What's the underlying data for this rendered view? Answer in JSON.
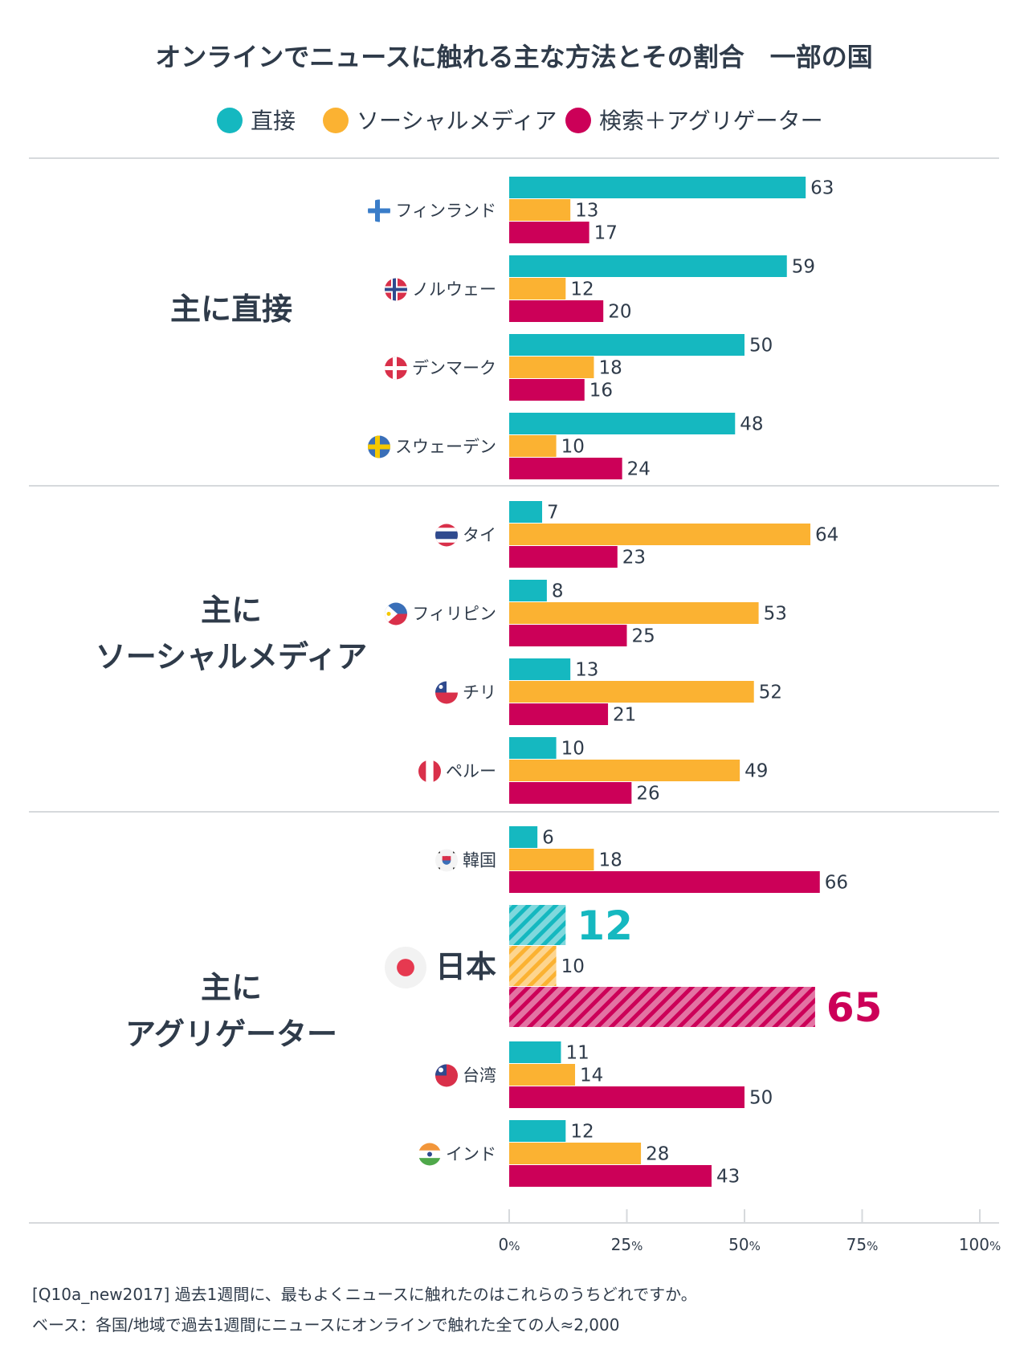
{
  "colors": {
    "direct": "#15b8c0",
    "social": "#fbb232",
    "search": "#cc0058",
    "text": "#2f3b4a",
    "rule": "#d6d9dc"
  },
  "chart_data": {
    "type": "bar",
    "orientation": "horizontal",
    "title": "オンラインでニュースに触れる主な方法とその割合　一部の国",
    "series_names": [
      "直接",
      "ソーシャルメディア",
      "検索＋アグリゲーター"
    ],
    "x_ticks": [
      "0",
      "25",
      "50",
      "75",
      "100"
    ],
    "tick_unit": "%",
    "xlim": [
      0,
      100
    ],
    "groups": [
      {
        "label_lines": [
          "主に直接"
        ],
        "countries": [
          {
            "name": "フィンランド",
            "flag": "finland-flag-icon",
            "values": [
              63,
              13,
              17
            ]
          },
          {
            "name": "ノルウェー",
            "flag": "norway-flag-icon",
            "values": [
              59,
              12,
              20
            ]
          },
          {
            "name": "デンマーク",
            "flag": "denmark-flag-icon",
            "values": [
              50,
              18,
              16
            ]
          },
          {
            "name": "スウェーデン",
            "flag": "sweden-flag-icon",
            "values": [
              48,
              10,
              24
            ]
          }
        ]
      },
      {
        "label_lines": [
          "主に",
          "ソーシャルメディア"
        ],
        "countries": [
          {
            "name": "タイ",
            "flag": "thailand-flag-icon",
            "values": [
              7,
              64,
              23
            ]
          },
          {
            "name": "フィリピン",
            "flag": "philippines-flag-icon",
            "values": [
              8,
              53,
              25
            ]
          },
          {
            "name": "チリ",
            "flag": "chile-flag-icon",
            "values": [
              13,
              52,
              21
            ]
          },
          {
            "name": "ペルー",
            "flag": "peru-flag-icon",
            "values": [
              10,
              49,
              26
            ]
          }
        ]
      },
      {
        "label_lines": [
          "主に",
          "アグリゲーター"
        ],
        "countries": [
          {
            "name": "韓国",
            "flag": "korea-flag-icon",
            "values": [
              6,
              18,
              66
            ]
          },
          {
            "name": "日本",
            "flag": "japan-flag-icon",
            "values": [
              12,
              10,
              65
            ],
            "highlight": true
          },
          {
            "name": "台湾",
            "flag": "taiwan-flag-icon",
            "values": [
              11,
              14,
              50
            ]
          },
          {
            "name": "インド",
            "flag": "india-flag-icon",
            "values": [
              12,
              28,
              43
            ]
          }
        ]
      }
    ]
  },
  "footnotes": {
    "question": "[Q10a_new2017] 過去1週間に、最もよくニュースに触れたのはこれらのうちどれですか。",
    "base": "ベース：各国/地域で過去1週間にニュースにオンラインで触れた全ての人≈2,000"
  }
}
